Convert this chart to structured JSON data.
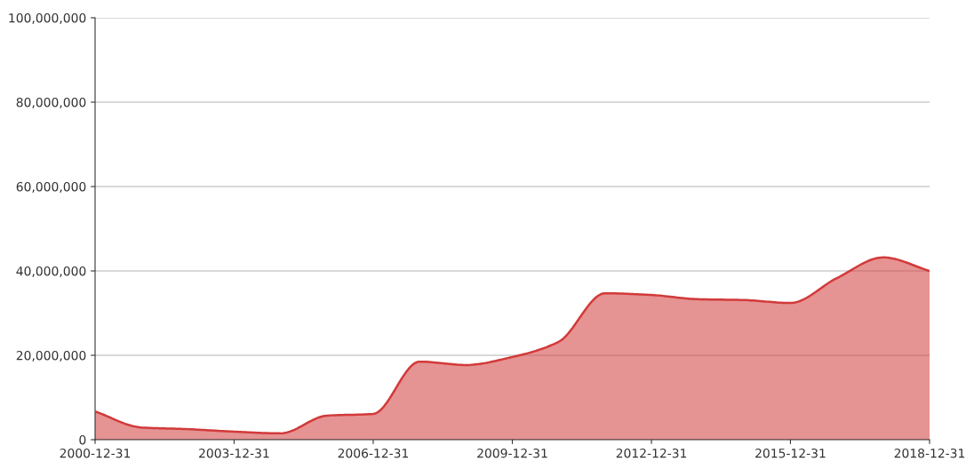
{
  "chart_data": {
    "type": "area",
    "x": [
      "2000-12-31",
      "2001-12-31",
      "2002-12-31",
      "2003-12-31",
      "2004-12-31",
      "2005-12-31",
      "2006-12-31",
      "2007-12-31",
      "2008-12-31",
      "2009-12-31",
      "2010-12-31",
      "2011-12-31",
      "2012-12-31",
      "2013-12-31",
      "2014-12-31",
      "2015-12-31",
      "2016-12-31",
      "2017-12-31",
      "2018-12-31"
    ],
    "series": [
      {
        "color": "#d23a3a",
        "values": [
          6700000,
          2900000,
          2500000,
          1900000,
          1500000,
          5700000,
          6100000,
          18500000,
          17700000,
          19600000,
          23200000,
          34700000,
          34300000,
          33300000,
          33100000,
          32400000,
          38300000,
          43200000,
          40000000
        ]
      }
    ],
    "xlim": [
      "2000-12-31",
      "2018-12-31"
    ],
    "xticks": [
      "2000-12-31",
      "2003-12-31",
      "2006-12-31",
      "2009-12-31",
      "2012-12-31",
      "2015-12-31",
      "2018-12-31"
    ],
    "ylim": [
      0,
      100000000
    ],
    "yticks": [
      {
        "value": 0,
        "label": "0"
      },
      {
        "value": 20000000,
        "label": "20,000,000"
      },
      {
        "value": 40000000,
        "label": "40,000,000"
      },
      {
        "value": 60000000,
        "label": "60,000,000"
      },
      {
        "value": 80000000,
        "label": "80,000,000"
      },
      {
        "value": 100000000,
        "label": "100,000,000"
      }
    ],
    "grid": "y"
  }
}
